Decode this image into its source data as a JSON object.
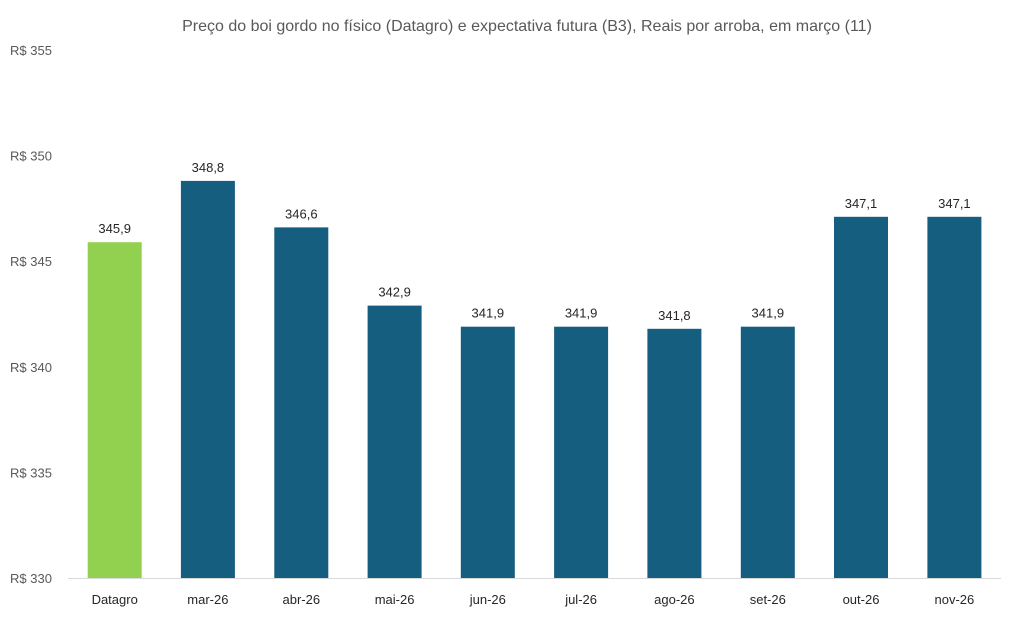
{
  "chart_data": {
    "type": "bar",
    "title": "Preço do boi gordo no físico (Datagro)  e expectativa futura (B3), Reais por arroba, em março (11)",
    "xlabel": "",
    "ylabel": "",
    "categories": [
      "Datagro",
      "mar-26",
      "abr-26",
      "mai-26",
      "jun-26",
      "jul-26",
      "ago-26",
      "set-26",
      "out-26",
      "nov-26"
    ],
    "values": [
      345.9,
      348.8,
      346.6,
      342.9,
      341.9,
      341.9,
      341.8,
      341.9,
      347.1,
      347.1
    ],
    "value_labels": [
      "345,9",
      "348,8",
      "346,6",
      "342,9",
      "341,9",
      "341,9",
      "341,8",
      "341,9",
      "347,1",
      "347,1"
    ],
    "ylim": [
      330,
      355
    ],
    "yticks": [
      330,
      335,
      340,
      345,
      350,
      355
    ],
    "ytick_labels": [
      "R$ 330",
      "R$ 335",
      "R$ 340",
      "R$ 345",
      "R$ 350",
      "R$ 355"
    ],
    "grid": false,
    "legend": "none",
    "colors": {
      "highlight": "#92d050",
      "bar": "#155e80",
      "axis": "#d9d9d9",
      "text": "#595959",
      "label_text": "#262626"
    },
    "highlight_index": 0
  }
}
